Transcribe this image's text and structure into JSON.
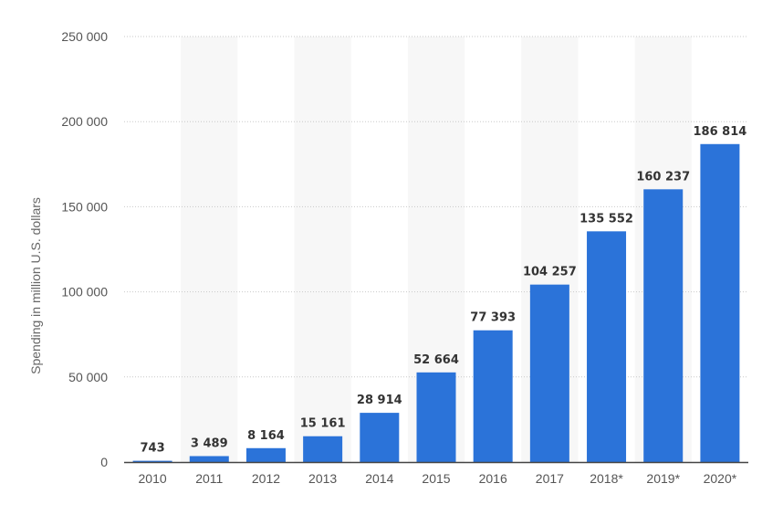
{
  "chart_data": {
    "type": "bar",
    "categories": [
      "2010",
      "2011",
      "2012",
      "2013",
      "2014",
      "2015",
      "2016",
      "2017",
      "2018*",
      "2019*",
      "2020*"
    ],
    "values": [
      743,
      3489,
      8164,
      15161,
      28914,
      52664,
      77393,
      104257,
      135552,
      160237,
      186814
    ],
    "value_labels": [
      "743",
      "3 489",
      "8 164",
      "15 161",
      "28 914",
      "52 664",
      "77 393",
      "104 257",
      "135 552",
      "160 237",
      "186 814"
    ],
    "ylabel": "Spending in million U.S. dollars",
    "ylim": [
      0,
      250000
    ],
    "y_ticks": [
      0,
      50000,
      100000,
      150000,
      200000,
      250000
    ],
    "y_tick_labels": [
      "0",
      "50 000",
      "100 000",
      "150 000",
      "200 000",
      "250 000"
    ],
    "grid": true,
    "legend": "none",
    "colors": {
      "bar": "#2b73d9",
      "band": "#f7f7f7",
      "grid": "#c9c9c9",
      "axis": "#444444"
    }
  }
}
